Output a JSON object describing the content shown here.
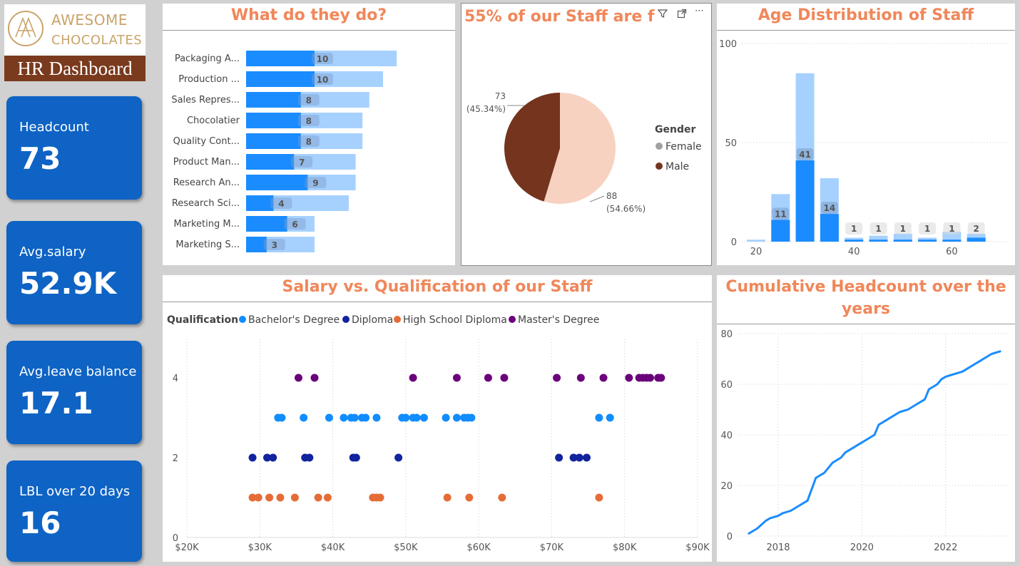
{
  "logo": {
    "line1": "AWESOME",
    "line2": "CHOCOLATES",
    "subtitle": "HR Dashboard"
  },
  "kpis": [
    {
      "label": "Headcount",
      "value": "73"
    },
    {
      "label": "Avg.salary",
      "value": "52.9K"
    },
    {
      "label": "Avg.leave balance",
      "value": "17.1"
    },
    {
      "label": "LBL over 20 days",
      "value": "16"
    }
  ],
  "panels": {
    "roles_title": "What do they do?",
    "gender_title": "55% of our Staff are f",
    "age_title": "Age Distribution of Staff",
    "salary_title": "Salary vs. Qualification of our Staff",
    "cumulative_title_line1": "Cumulative Headcount over the",
    "cumulative_title_line2": "years"
  },
  "toolbar": {
    "filter_icon": "filter-icon",
    "focus_icon": "focus-mode-icon",
    "more_icon": "more-options-icon",
    "more_label": "⋯"
  },
  "colors": {
    "accent_title": "#f0875a",
    "kpi_bg": "#0e63c4",
    "bar_dark": "#1a8cff",
    "bar_light": "#a6d1ff",
    "female": "#f7d2c1",
    "male": "#74341e",
    "brand_bar": "#7a3a1e"
  },
  "chart_data": [
    {
      "id": "roles",
      "type": "bar",
      "orientation": "horizontal",
      "categories": [
        "Packaging A...",
        "Production ...",
        "Sales Repres...",
        "Chocolatier",
        "Quality Cont...",
        "Product Man...",
        "Research An...",
        "Research Sci...",
        "Marketing M...",
        "Marketing S..."
      ],
      "values": [
        10,
        10,
        8,
        8,
        8,
        7,
        9,
        4,
        6,
        3
      ],
      "background_values": [
        22,
        20,
        18,
        17,
        17,
        16,
        16,
        15,
        10,
        10
      ],
      "title": "What do they do?"
    },
    {
      "id": "gender",
      "type": "pie",
      "legend_title": "Gender",
      "slices": [
        {
          "name": "Female",
          "value": 88,
          "label": "88",
          "pct": "(54.66%)",
          "color": "#f7d2c1"
        },
        {
          "name": "Male",
          "value": 73,
          "label": "73",
          "pct": "(45.34%)",
          "color": "#74341e"
        }
      ],
      "legend_swatches": {
        "Female": "#a0a0a0",
        "Male": "#74341e"
      }
    },
    {
      "id": "age",
      "type": "bar",
      "x": [
        20,
        25,
        30,
        35,
        40,
        45,
        50,
        55,
        60,
        65
      ],
      "values": [
        0,
        11,
        41,
        14,
        1,
        1,
        1,
        1,
        1,
        2
      ],
      "background_values": [
        1,
        24,
        85,
        32,
        2,
        3,
        4,
        2,
        5,
        4
      ],
      "data_labels": [
        "",
        "11",
        "41",
        "14",
        "1",
        "1",
        "1",
        "1",
        "1",
        "2"
      ],
      "ylim": [
        0,
        100
      ],
      "xticks": [
        "20",
        "40",
        "60"
      ],
      "yticks": [
        "0",
        "50",
        "100"
      ]
    },
    {
      "id": "salary",
      "type": "scatter",
      "legend_title": "Qualification",
      "series": [
        {
          "name": "Bachelor's Degree",
          "color": "#118dff",
          "y": 3,
          "x": [
            32500,
            33000,
            36000,
            39500,
            41500,
            42500,
            43000,
            44000,
            44500,
            46000,
            49500,
            50000,
            51000,
            51500,
            52500,
            55500,
            57000,
            58000,
            58500,
            59000,
            76500,
            78000
          ]
        },
        {
          "name": "Diploma",
          "color": "#12239e",
          "y": 2,
          "x": [
            29000,
            31000,
            31800,
            36200,
            36800,
            42800,
            43200,
            49000,
            71000,
            73000,
            73800,
            74800
          ]
        },
        {
          "name": "High School Diploma",
          "color": "#e66c37",
          "y": 1,
          "x": [
            29000,
            29800,
            31300,
            32800,
            34800,
            38000,
            39300,
            45500,
            46000,
            46500,
            55700,
            58700,
            63200,
            76500
          ]
        },
        {
          "name": "Master's Degree",
          "color": "#6b007b",
          "y": 4,
          "x": [
            35300,
            37500,
            51000,
            57000,
            61300,
            63500,
            70700,
            74000,
            77100,
            80600,
            82000,
            82500,
            83000,
            83500,
            84600,
            85000
          ]
        }
      ],
      "xlim": [
        20000,
        90000
      ],
      "ylim": [
        0,
        4.3
      ],
      "xticks": [
        "$20K",
        "$30K",
        "$40K",
        "$50K",
        "$60K",
        "$70K",
        "$80K",
        "$90K"
      ],
      "yticks": [
        "0",
        "2",
        "4"
      ]
    },
    {
      "id": "cumulative",
      "type": "line",
      "x": [
        2017.3,
        2017.5,
        2017.7,
        2017.8,
        2018.0,
        2018.1,
        2018.3,
        2018.5,
        2018.7,
        2018.9,
        2019.1,
        2019.3,
        2019.5,
        2019.6,
        2019.7,
        2019.8,
        2019.9,
        2020.0,
        2020.1,
        2020.3,
        2020.4,
        2020.5,
        2020.7,
        2020.9,
        2021.1,
        2021.3,
        2021.5,
        2021.6,
        2021.8,
        2021.9,
        2022.0,
        2022.2,
        2022.4,
        2022.6,
        2022.7,
        2022.8,
        2022.9,
        2023.1,
        2023.3
      ],
      "values": [
        1,
        3,
        6,
        7,
        8,
        9,
        10,
        12,
        14,
        23,
        25,
        29,
        31,
        33,
        34,
        35,
        36,
        37,
        38,
        40,
        44,
        45,
        47,
        49,
        50,
        52,
        54,
        58,
        60,
        62,
        63,
        64,
        65,
        67,
        68,
        69,
        70,
        72,
        73
      ],
      "xticks": [
        "2018",
        "2020",
        "2022"
      ],
      "yticks": [
        "0",
        "20",
        "40",
        "60",
        "80"
      ],
      "ylim": [
        0,
        80
      ],
      "xlim": [
        2016.8,
        2023.6
      ]
    }
  ]
}
